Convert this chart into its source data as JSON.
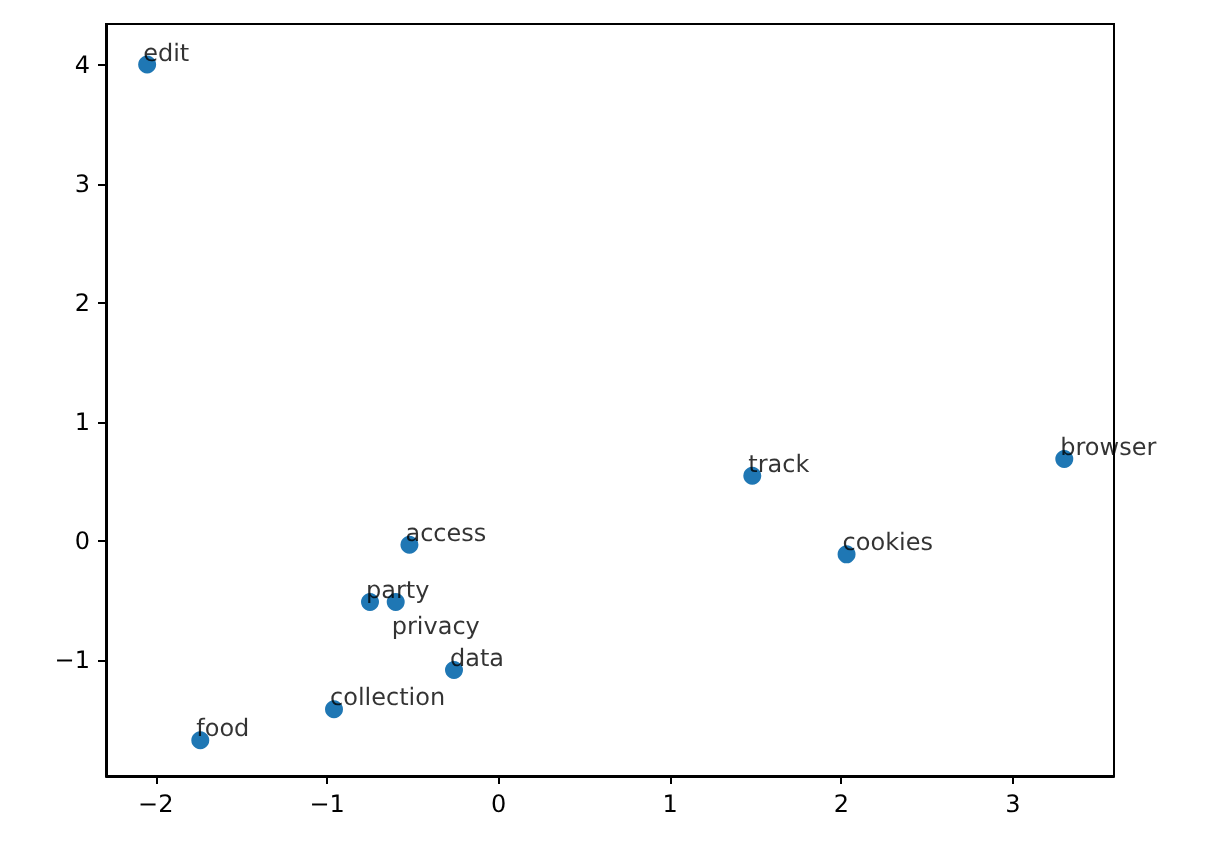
{
  "chart_data": {
    "type": "scatter",
    "color": "#1f77b4",
    "marker": "circle",
    "grid": false,
    "x": [
      -2.05,
      3.3,
      1.48,
      2.03,
      -0.52,
      -0.75,
      -0.6,
      -0.26,
      -0.96,
      -1.74
    ],
    "values": [
      4.0,
      0.69,
      0.55,
      -0.11,
      -0.03,
      -0.51,
      -0.51,
      -1.08,
      -1.41,
      -1.67
    ],
    "xlim": [
      -2.29,
      3.59
    ],
    "ylim": [
      -1.97,
      4.34
    ],
    "xticks": [
      {
        "value": -2,
        "label": "−2"
      },
      {
        "value": -1,
        "label": "−1"
      },
      0,
      1,
      2,
      3
    ],
    "yticks": [
      {
        "value": -1,
        "label": "−1"
      },
      0,
      1,
      2,
      3,
      4
    ],
    "annotations": [
      {
        "text": "edit",
        "x": -2.05,
        "y": 4.0
      },
      {
        "text": "browser",
        "x": 3.3,
        "y": 0.69
      },
      {
        "text": "track",
        "x": 1.48,
        "y": 0.55
      },
      {
        "text": "cookies",
        "x": 2.03,
        "y": -0.11
      },
      {
        "text": "access",
        "x": -0.52,
        "y": -0.03
      },
      {
        "text": "party",
        "x": -0.75,
        "y": -0.51
      },
      {
        "text": "privacy",
        "x": -0.6,
        "y": -0.51
      },
      {
        "text": "data",
        "x": -0.26,
        "y": -1.08
      },
      {
        "text": "collection",
        "x": -0.96,
        "y": -1.41
      },
      {
        "text": "food",
        "x": -1.74,
        "y": -1.67
      }
    ]
  }
}
